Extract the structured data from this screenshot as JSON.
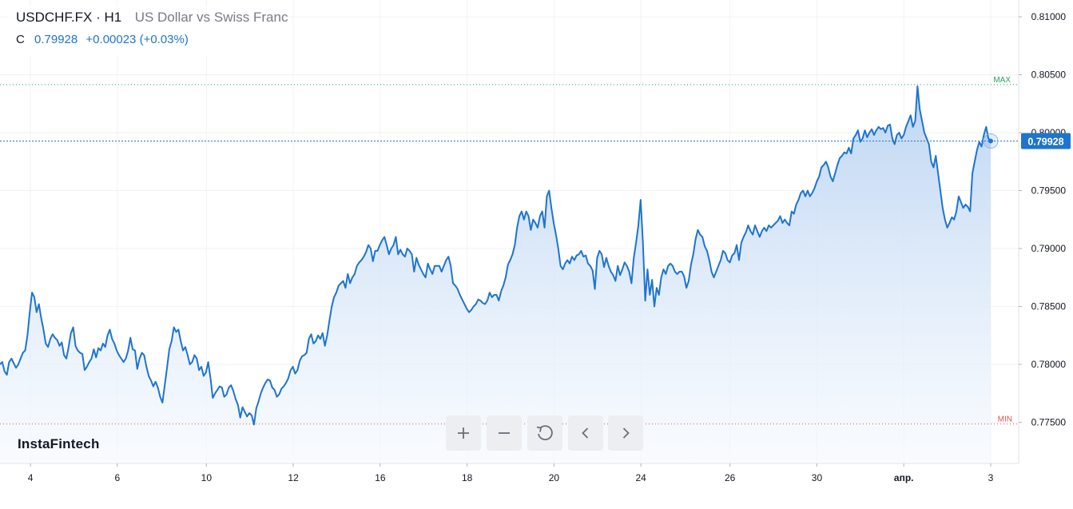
{
  "header": {
    "symbol": "USDCHF.FX · H1",
    "description": "US Dollar vs Swiss Franc",
    "close_label": "C",
    "close_value": "0.79928",
    "change": "+0.00023 (+0.03%)"
  },
  "brand": {
    "logo_text": "InstaFintech"
  },
  "controls": [
    {
      "name": "zoom-in-button",
      "icon": "plus-icon"
    },
    {
      "name": "zoom-out-button",
      "icon": "minus-icon"
    },
    {
      "name": "reset-button",
      "icon": "reset-icon"
    },
    {
      "name": "scroll-left-button",
      "icon": "chevron-left-icon"
    },
    {
      "name": "scroll-right-button",
      "icon": "chevron-right-icon"
    }
  ],
  "colors": {
    "line": "#1e74d0",
    "area_top": "#b9d3f2",
    "area_bottom": "#f5f9fe",
    "max_line": "#26a65b",
    "min_line": "#e05454",
    "price_badge": "#1e74d0",
    "grid": "#f0f3fa",
    "axis_text": "#131722"
  },
  "chart_data": {
    "type": "area",
    "ylim": [
      0.7715,
      0.8115
    ],
    "y_ticks": [
      "0.81000",
      "0.80500",
      "0.80000",
      "0.79500",
      "0.79000",
      "0.78500",
      "0.78000",
      "0.77500"
    ],
    "y_tick_values": [
      0.81,
      0.805,
      0.8,
      0.795,
      0.79,
      0.785,
      0.78,
      0.775
    ],
    "x_ticks": [
      "4",
      "6",
      "10",
      "12",
      "16",
      "18",
      "20",
      "24",
      "26",
      "30",
      "апр.",
      "3"
    ],
    "x_tick_index": [
      14,
      54,
      95,
      135,
      175,
      215,
      255,
      295,
      336,
      376,
      416,
      456
    ],
    "last_price": 0.79928,
    "last_price_label": "0.79928",
    "max": {
      "label": "MAX",
      "value": 0.80415
    },
    "min": {
      "label": "MIN",
      "value": 0.77485
    },
    "grid": true,
    "series": [
      {
        "values": [
          0.78,
          0.7802,
          0.7794,
          0.7791,
          0.7802,
          0.7805,
          0.7801,
          0.7797,
          0.78,
          0.7805,
          0.781,
          0.7812,
          0.7825,
          0.7845,
          0.7862,
          0.7858,
          0.7845,
          0.7852,
          0.784,
          0.783,
          0.7818,
          0.7815,
          0.7822,
          0.7826,
          0.7823,
          0.7821,
          0.7816,
          0.7819,
          0.7808,
          0.7805,
          0.7815,
          0.7827,
          0.7832,
          0.7816,
          0.7812,
          0.781,
          0.7809,
          0.7795,
          0.7798,
          0.7802,
          0.7805,
          0.7813,
          0.7806,
          0.7814,
          0.7812,
          0.7818,
          0.7815,
          0.7825,
          0.783,
          0.7822,
          0.7818,
          0.7812,
          0.7808,
          0.7805,
          0.7802,
          0.7805,
          0.7812,
          0.7823,
          0.7813,
          0.7812,
          0.7796,
          0.7805,
          0.781,
          0.7808,
          0.7798,
          0.779,
          0.7786,
          0.7781,
          0.7785,
          0.778,
          0.7772,
          0.7767,
          0.7782,
          0.7797,
          0.7813,
          0.782,
          0.7832,
          0.7828,
          0.783,
          0.782,
          0.7812,
          0.7815,
          0.7808,
          0.78,
          0.7802,
          0.7808,
          0.7805,
          0.7795,
          0.7798,
          0.779,
          0.7793,
          0.7802,
          0.7788,
          0.7771,
          0.7775,
          0.7778,
          0.7781,
          0.778,
          0.7772,
          0.7774,
          0.778,
          0.7782,
          0.7777,
          0.777,
          0.7765,
          0.7754,
          0.7763,
          0.7759,
          0.7755,
          0.7758,
          0.7756,
          0.7748,
          0.7762,
          0.7768,
          0.7775,
          0.778,
          0.7784,
          0.7787,
          0.7786,
          0.778,
          0.7778,
          0.7772,
          0.7774,
          0.7779,
          0.7781,
          0.7784,
          0.7788,
          0.7795,
          0.7798,
          0.7792,
          0.7795,
          0.7803,
          0.7807,
          0.7808,
          0.781,
          0.7822,
          0.7826,
          0.7818,
          0.782,
          0.7825,
          0.7822,
          0.7827,
          0.7816,
          0.7825,
          0.7838,
          0.785,
          0.7858,
          0.7862,
          0.7868,
          0.787,
          0.7872,
          0.7866,
          0.7878,
          0.787,
          0.7875,
          0.7878,
          0.7885,
          0.7888,
          0.789,
          0.7893,
          0.7897,
          0.7903,
          0.79,
          0.7889,
          0.7898,
          0.7898,
          0.7903,
          0.7907,
          0.791,
          0.7903,
          0.7895,
          0.79,
          0.7903,
          0.791,
          0.7895,
          0.7899,
          0.7895,
          0.7893,
          0.79,
          0.7898,
          0.7895,
          0.788,
          0.7892,
          0.7886,
          0.7882,
          0.7878,
          0.7875,
          0.7887,
          0.7882,
          0.7878,
          0.7885,
          0.7885,
          0.7885,
          0.788,
          0.7885,
          0.789,
          0.7893,
          0.7885,
          0.787,
          0.7868,
          0.7865,
          0.786,
          0.7856,
          0.7852,
          0.7848,
          0.7845,
          0.7847,
          0.785,
          0.7852,
          0.7856,
          0.7855,
          0.7853,
          0.7852,
          0.7855,
          0.7862,
          0.7858,
          0.786,
          0.786,
          0.7855,
          0.7863,
          0.7868,
          0.7875,
          0.7886,
          0.789,
          0.7895,
          0.7903,
          0.7918,
          0.7928,
          0.7932,
          0.7925,
          0.7932,
          0.7928,
          0.7916,
          0.7925,
          0.7922,
          0.7918,
          0.7928,
          0.7932,
          0.7918,
          0.7945,
          0.795,
          0.7935,
          0.7922,
          0.7912,
          0.79,
          0.7885,
          0.7882,
          0.7887,
          0.789,
          0.7887,
          0.7893,
          0.789,
          0.7894,
          0.7895,
          0.7898,
          0.7893,
          0.7894,
          0.7887,
          0.7885,
          0.7881,
          0.7865,
          0.7892,
          0.7898,
          0.7895,
          0.7884,
          0.7892,
          0.7885,
          0.788,
          0.7877,
          0.7872,
          0.7885,
          0.7877,
          0.7882,
          0.7888,
          0.7885,
          0.788,
          0.787,
          0.7892,
          0.7905,
          0.792,
          0.7942,
          0.7905,
          0.7855,
          0.7882,
          0.786,
          0.7873,
          0.785,
          0.7866,
          0.786,
          0.7875,
          0.7882,
          0.7878,
          0.7885,
          0.7887,
          0.7885,
          0.788,
          0.7878,
          0.788,
          0.788,
          0.7876,
          0.7866,
          0.7872,
          0.7886,
          0.7895,
          0.7908,
          0.7916,
          0.7912,
          0.791,
          0.7902,
          0.7898,
          0.789,
          0.788,
          0.7875,
          0.788,
          0.7885,
          0.789,
          0.7898,
          0.7896,
          0.789,
          0.7888,
          0.7894,
          0.7896,
          0.7903,
          0.789,
          0.7905,
          0.791,
          0.7914,
          0.792,
          0.7915,
          0.7912,
          0.792,
          0.7915,
          0.791,
          0.7915,
          0.7918,
          0.7915,
          0.792,
          0.7918,
          0.792,
          0.7922,
          0.7924,
          0.7928,
          0.7922,
          0.7925,
          0.7922,
          0.792,
          0.7932,
          0.793,
          0.7938,
          0.7942,
          0.7948,
          0.795,
          0.7945,
          0.795,
          0.7945,
          0.7948,
          0.7952,
          0.7958,
          0.7962,
          0.797,
          0.7972,
          0.7975,
          0.797,
          0.7962,
          0.7958,
          0.7965,
          0.7972,
          0.7978,
          0.798,
          0.7983,
          0.7982,
          0.7987,
          0.7982,
          0.7995,
          0.7998,
          0.8002,
          0.7992,
          0.7995,
          0.8002,
          0.7996,
          0.8,
          0.8003,
          0.7998,
          0.8002,
          0.8005,
          0.8003,
          0.8004,
          0.8,
          0.8006,
          0.8007,
          0.7995,
          0.799,
          0.7998,
          0.8,
          0.7995,
          0.7998,
          0.8005,
          0.801,
          0.8015,
          0.8005,
          0.801,
          0.804,
          0.802,
          0.801,
          0.8,
          0.7995,
          0.799,
          0.7975,
          0.797,
          0.798,
          0.7965,
          0.795,
          0.7935,
          0.7925,
          0.7918,
          0.7922,
          0.7927,
          0.7925,
          0.7932,
          0.7945,
          0.794,
          0.7935,
          0.7938,
          0.7936,
          0.7932,
          0.7965,
          0.7975,
          0.7985,
          0.7992,
          0.7988,
          0.7998,
          0.8005,
          0.7995,
          0.79928
        ]
      }
    ]
  }
}
